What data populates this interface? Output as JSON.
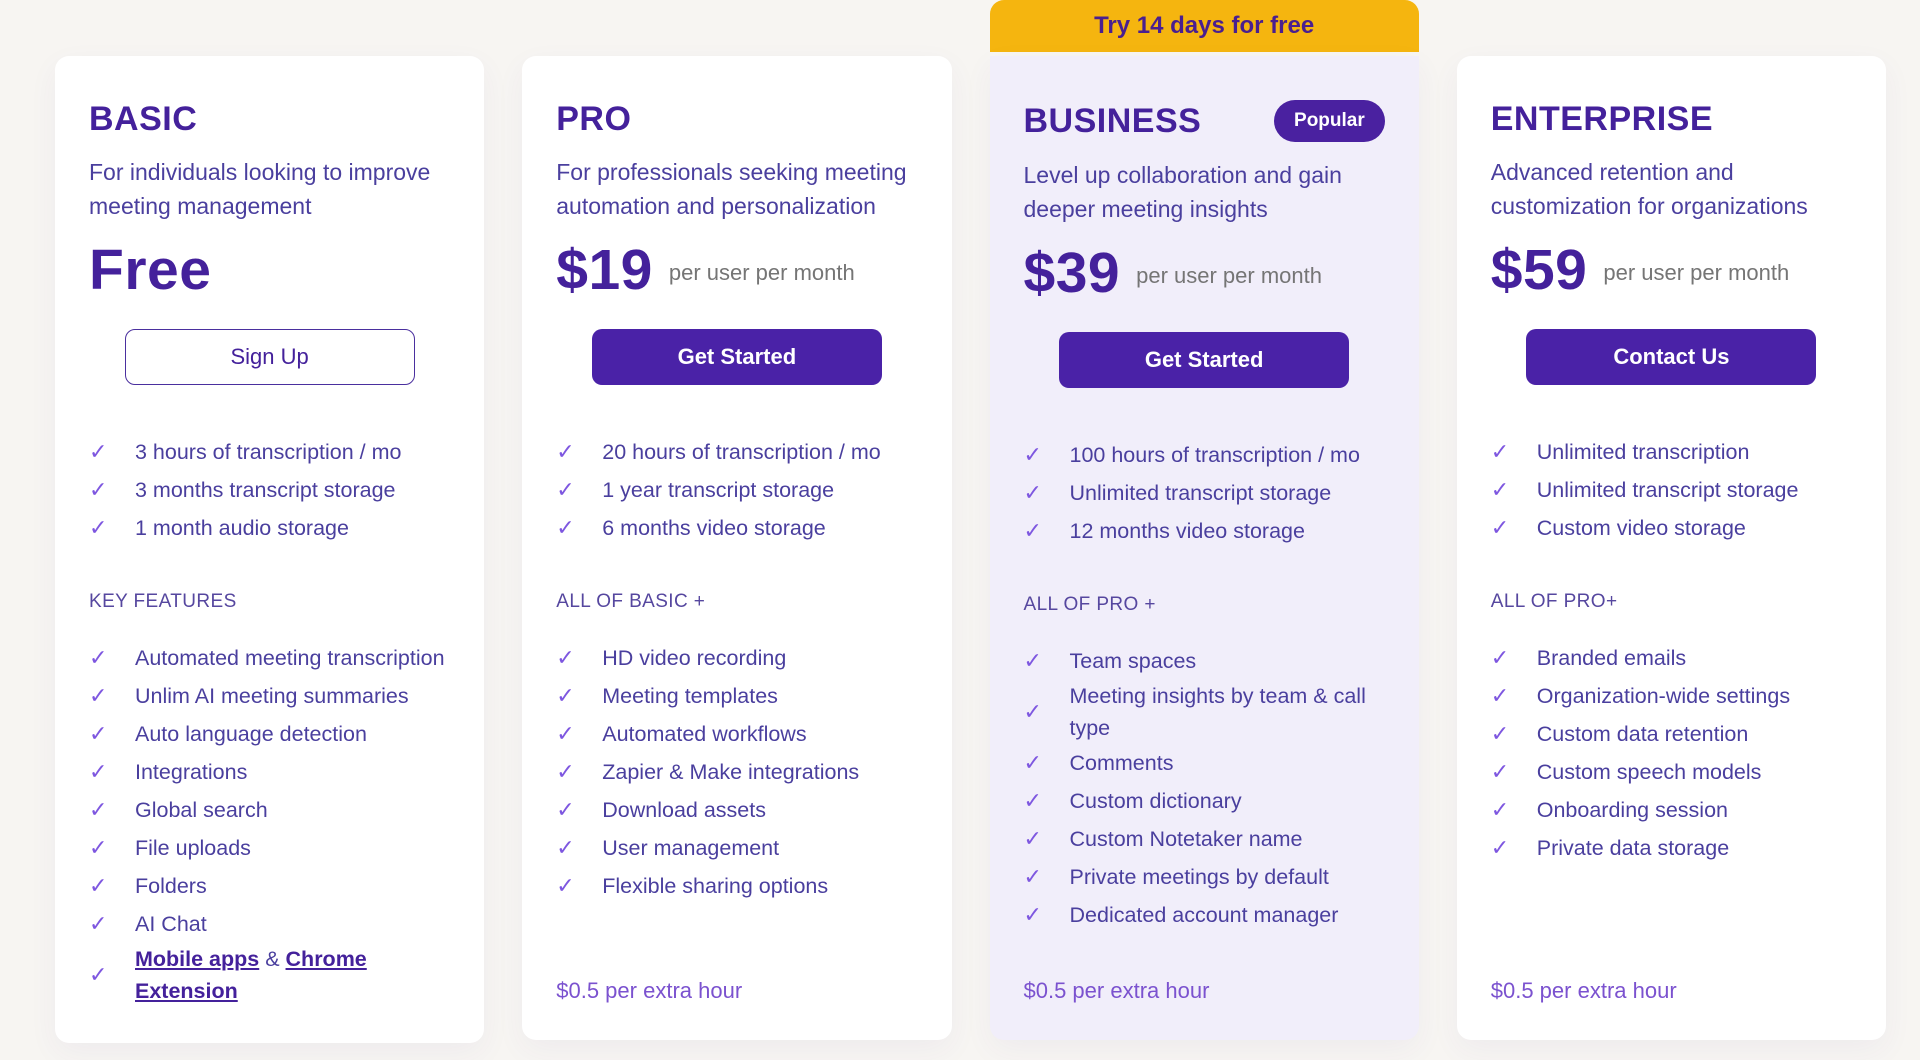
{
  "icons": {
    "check": "✓"
  },
  "colors": {
    "page_bg": "#F7F5F2",
    "card_bg": "#FFFFFF",
    "highlight_card_bg": "#F1EEFA",
    "banner_bg": "#F5B50F",
    "banner_text": "#4A1F8F",
    "primary_purple": "#44219B",
    "body_purple": "#4A3F9E",
    "button_purple": "#4A22A7",
    "check_purple": "#7E57E0",
    "suffix_gray": "#757575",
    "footer_purple": "#7B52CF"
  },
  "plans": [
    {
      "id": "basic",
      "name": "BASIC",
      "description": "For individuals looking to improve meeting management",
      "price": "Free",
      "price_suffix": "",
      "cta": "Sign Up",
      "cta_style": "outline",
      "core_features": [
        "3 hours of transcription / mo",
        "3 months transcript storage",
        "1 month audio storage"
      ],
      "section_label": "KEY FEATURES",
      "features": [
        "Automated meeting transcription",
        "Unlim AI meeting summaries",
        "Auto language detection",
        "Integrations",
        "Global search",
        "File uploads",
        "Folders",
        "AI Chat",
        {
          "parts": [
            {
              "text": "Mobile apps",
              "link": true
            },
            {
              "text": " & ",
              "link": false
            },
            {
              "text": "Chrome Extension",
              "link": true
            }
          ]
        }
      ],
      "footer_note": ""
    },
    {
      "id": "pro",
      "name": "PRO",
      "description": "For professionals seeking meeting automation and personalization",
      "price": "$19",
      "price_suffix": "per user per month",
      "cta": "Get Started",
      "cta_style": "solid",
      "core_features": [
        "20 hours of transcription / mo",
        "1 year transcript storage",
        "6 months video storage"
      ],
      "section_label": "ALL OF BASIC +",
      "features": [
        "HD video recording",
        "Meeting templates",
        "Automated workflows",
        "Zapier & Make integrations",
        "Download assets",
        "User management",
        "Flexible sharing options"
      ],
      "footer_note": "$0.5 per extra hour"
    },
    {
      "id": "business",
      "name": "BUSINESS",
      "badge": "Popular",
      "banner": "Try 14 days for free",
      "highlight": true,
      "description": "Level up collaboration and gain deeper meeting insights",
      "price": "$39",
      "price_suffix": "per user per month",
      "cta": "Get Started",
      "cta_style": "solid",
      "core_features": [
        "100 hours of transcription / mo",
        "Unlimited transcript storage",
        "12 months video storage"
      ],
      "section_label": "ALL OF PRO +",
      "features": [
        "Team spaces",
        "Meeting insights by team & call type",
        "Comments",
        "Custom dictionary",
        "Custom Notetaker name",
        "Private meetings by default",
        "Dedicated account manager"
      ],
      "footer_note": "$0.5 per extra hour"
    },
    {
      "id": "enterprise",
      "name": "ENTERPRISE",
      "description": "Advanced retention and customization for organizations",
      "price": "$59",
      "price_suffix": "per user per month",
      "cta": "Contact Us",
      "cta_style": "solid",
      "core_features": [
        "Unlimited transcription",
        "Unlimited transcript storage",
        "Custom video storage"
      ],
      "section_label": "ALL OF PRO+",
      "features": [
        "Branded emails",
        "Organization-wide settings",
        "Custom data retention",
        "Custom speech models",
        "Onboarding session",
        "Private data storage"
      ],
      "footer_note": "$0.5 per extra hour"
    }
  ]
}
